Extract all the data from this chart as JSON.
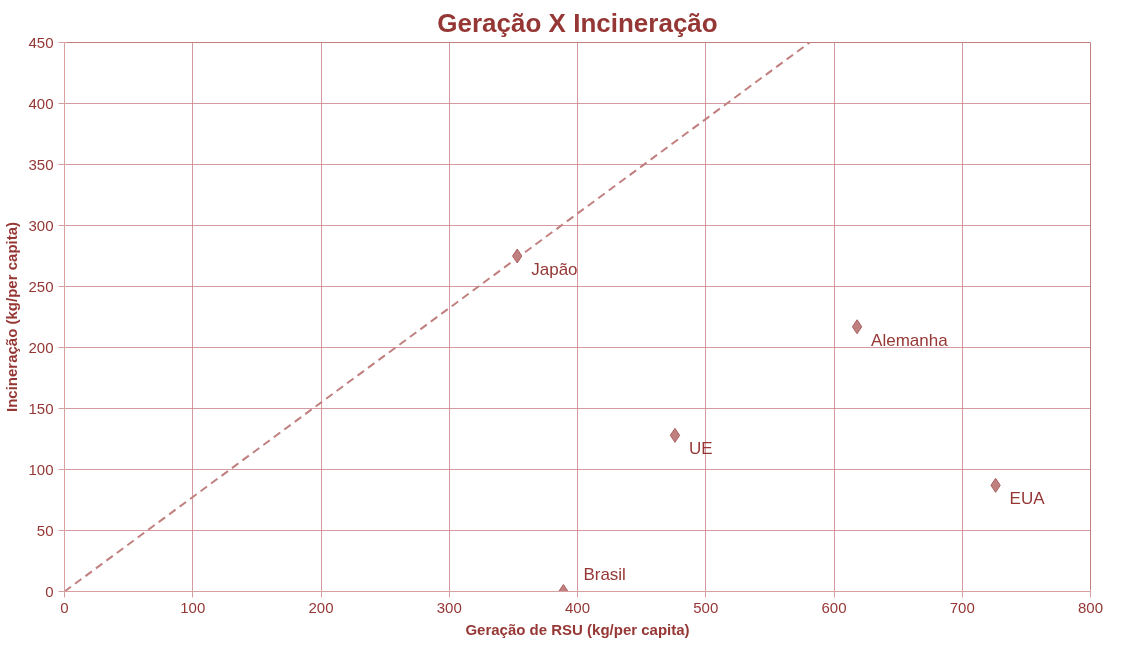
{
  "chart_data": {
    "type": "scatter",
    "title": "Geração X Incineração",
    "xlabel": "Geração de RSU (kg/per capita)",
    "ylabel": "Incineração (kg/per capita)",
    "xlim": [
      0,
      800
    ],
    "xticks": [
      0,
      100,
      200,
      300,
      400,
      500,
      600,
      700,
      800
    ],
    "ylim": [
      0,
      450
    ],
    "yticks": [
      0,
      50,
      100,
      150,
      200,
      250,
      300,
      350,
      400,
      450
    ],
    "grid": true,
    "marker": "diamond",
    "series": [
      {
        "color": "#c0807f",
        "x": [
          353,
          618,
          476,
          726,
          389
        ],
        "values": [
          275,
          217,
          128,
          87,
          0
        ]
      },
      {
        "type": "line",
        "color": "#c0807f",
        "line_style": "dashed",
        "marker": "none",
        "x": [
          0,
          581
        ],
        "values": [
          0,
          450
        ]
      }
    ],
    "annotations": [
      {
        "text": "Japão",
        "x": 353,
        "y": 275
      },
      {
        "text": "Alemanha",
        "x": 618,
        "y": 217
      },
      {
        "text": "UE",
        "x": 476,
        "y": 128
      },
      {
        "text": "EUA",
        "x": 726,
        "y": 87
      },
      {
        "text": "Brasil",
        "x": 389,
        "y": 0
      }
    ]
  }
}
